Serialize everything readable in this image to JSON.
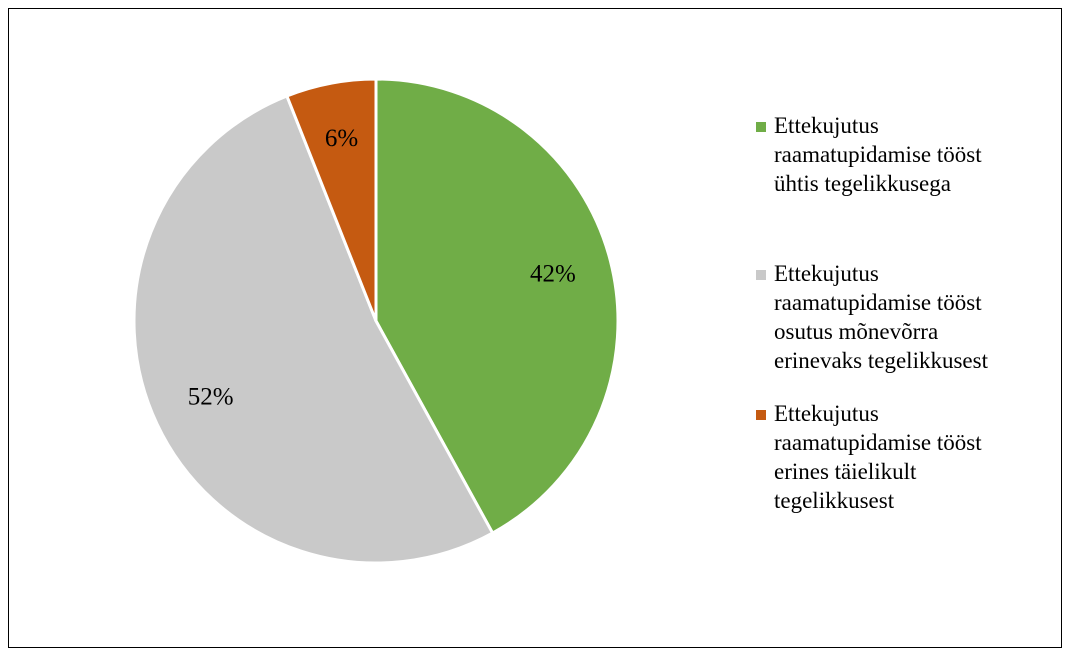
{
  "chart_data": {
    "type": "pie",
    "title": "",
    "slices": [
      {
        "label": "Ettekujutus raamatupidamise tööst ühtis tegelikkusega",
        "value": 42,
        "display": "42%",
        "color": "#70AD47"
      },
      {
        "label": "Ettekujutus raamatupidamise tööst osutus mõnevõrra erinevaks tegelikkusest",
        "value": 52,
        "display": "52%",
        "color": "#C9C9C9"
      },
      {
        "label": "Ettekujutus raamatupidamise tööst erines täielikult tegelikkusest",
        "value": 6,
        "display": "6%",
        "color": "#C55A11"
      }
    ],
    "legend_position": "right"
  },
  "legend": {
    "items": [
      {
        "text": "Ettekujutus\nraamatupidamise tööst\nühtis tegelikkusega",
        "color": "#70AD47"
      },
      {
        "text": "Ettekujutus\nraamatupidamise tööst\nosutus mõnevõrra\nerinevaks tegelikkusest",
        "color": "#C9C9C9"
      },
      {
        "text": "Ettekujutus\nraamatupidamise tööst\nerines täielikult\ntegelikkusest",
        "color": "#C55A11"
      }
    ]
  }
}
